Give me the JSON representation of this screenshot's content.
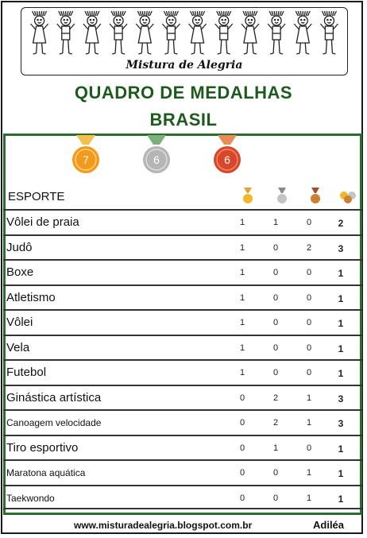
{
  "header": {
    "brand": "Mistura de Alegria",
    "figure_count": 12
  },
  "title": {
    "line1": "QUADRO DE MEDALHAS",
    "line2": "BRASIL"
  },
  "medals": {
    "gold": {
      "count": "7",
      "color": "#f39a1a"
    },
    "silver": {
      "count": "6",
      "color": "#b5b5b5"
    },
    "bronze": {
      "count": "6",
      "color": "#d9472b"
    }
  },
  "table": {
    "header_label": "ESPORTE",
    "columns": [
      "gold-medal-icon",
      "silver-medal-icon",
      "bronze-medal-icon",
      "total-medals-icon"
    ],
    "rows": [
      {
        "sport": "Vôlei de praia",
        "gold": "1",
        "silver": "1",
        "bronze": "0",
        "total": "2"
      },
      {
        "sport": "Judô",
        "gold": "1",
        "silver": "0",
        "bronze": "2",
        "total": "3"
      },
      {
        "sport": "Boxe",
        "gold": "1",
        "silver": "0",
        "bronze": "0",
        "total": "1"
      },
      {
        "sport": "Atletismo",
        "gold": "1",
        "silver": "0",
        "bronze": "0",
        "total": "1"
      },
      {
        "sport": "Vôlei",
        "gold": "1",
        "silver": "0",
        "bronze": "0",
        "total": "1"
      },
      {
        "sport": "Vela",
        "gold": "1",
        "silver": "0",
        "bronze": "0",
        "total": "1"
      },
      {
        "sport": "Futebol",
        "gold": "1",
        "silver": "0",
        "bronze": "0",
        "total": "1"
      },
      {
        "sport": "Ginástica artística",
        "gold": "0",
        "silver": "2",
        "bronze": "1",
        "total": "3"
      },
      {
        "sport": "Canoagem velocidade",
        "gold": "0",
        "silver": "2",
        "bronze": "1",
        "total": "3"
      },
      {
        "sport": "Tiro esportivo",
        "gold": "0",
        "silver": "1",
        "bronze": "0",
        "total": "1"
      },
      {
        "sport": "Maratona aquática",
        "gold": "0",
        "silver": "0",
        "bronze": "1",
        "total": "1"
      },
      {
        "sport": "Taekwondo",
        "gold": "0",
        "silver": "0",
        "bronze": "1",
        "total": "1"
      }
    ]
  },
  "footer": {
    "site": "www.misturadealegria.blogspot.com.br",
    "author": "Adiléa"
  }
}
